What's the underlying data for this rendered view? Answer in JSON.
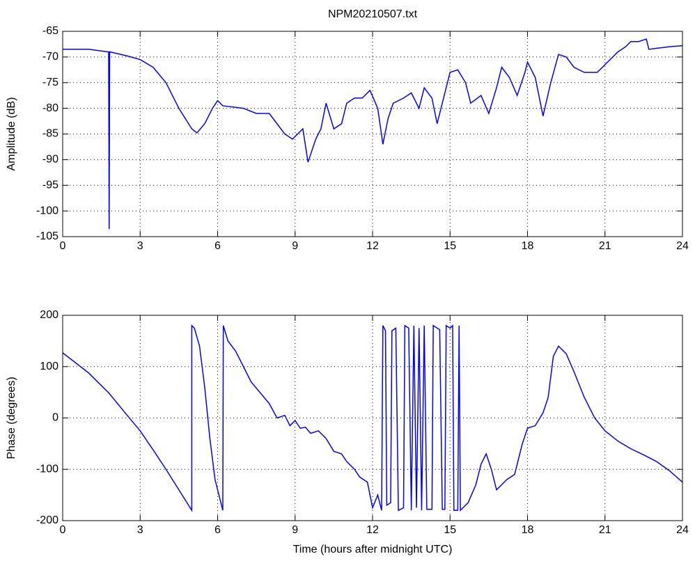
{
  "chart_data": [
    {
      "type": "line",
      "title": "NPM20210507.txt",
      "ylabel": "Amplitude (dB)",
      "xlim": [
        0,
        24
      ],
      "xticks": [
        0,
        3,
        6,
        9,
        12,
        15,
        18,
        21,
        24
      ],
      "ylim": [
        -105,
        -65
      ],
      "yticks": [
        -105,
        -100,
        -95,
        -90,
        -85,
        -80,
        -75,
        -70,
        -65
      ],
      "grid": true,
      "series": [
        {
          "color": "#0000ff",
          "x": [
            0,
            1,
            1.75,
            1.78,
            1.8,
            1.82,
            2.5,
            3,
            3.5,
            4,
            4.5,
            5,
            5.2,
            5.5,
            5.8,
            6,
            6.2,
            7,
            7.5,
            8,
            8.3,
            8.6,
            8.9,
            9.1,
            9.3,
            9.5,
            9.8,
            10,
            10.2,
            10.5,
            10.8,
            11,
            11.3,
            11.6,
            11.9,
            12.2,
            12.4,
            12.6,
            12.8,
            13.2,
            13.5,
            13.8,
            14,
            14.3,
            14.5,
            14.8,
            15,
            15.3,
            15.6,
            15.8,
            16.2,
            16.5,
            16.8,
            17,
            17.3,
            17.6,
            17.9,
            18,
            18.3,
            18.6,
            18.9,
            19.2,
            19.5,
            19.8,
            20.2,
            20.7,
            21.1,
            21.5,
            21.8,
            22,
            22.3,
            22.6,
            22.7,
            23,
            23.5,
            24
          ],
          "values": [
            -68.5,
            -68.5,
            -69,
            -69,
            -103.5,
            -69,
            -69.8,
            -70.5,
            -72,
            -75,
            -80,
            -84,
            -84.8,
            -83,
            -80,
            -78.5,
            -79.5,
            -80,
            -81,
            -81,
            -83,
            -85,
            -86,
            -85,
            -84,
            -90.5,
            -86,
            -84,
            -79,
            -84,
            -83,
            -79,
            -78,
            -78,
            -76.5,
            -80,
            -87,
            -82,
            -79,
            -78,
            -77,
            -80,
            -76,
            -78,
            -83,
            -77,
            -73,
            -72.5,
            -75,
            -79,
            -77.5,
            -81,
            -76,
            -72,
            -74,
            -77.5,
            -73,
            -71,
            -74,
            -81.5,
            -75,
            -69.5,
            -70,
            -72,
            -73,
            -73,
            -71,
            -69,
            -68,
            -67,
            -67,
            -66.5,
            -68.5,
            -68.3,
            -68,
            -67.8
          ]
        }
      ]
    },
    {
      "type": "line",
      "ylabel": "Phase (degrees)",
      "xlabel": "Time (hours after midnight UTC)",
      "xlim": [
        0,
        24
      ],
      "xticks": [
        0,
        3,
        6,
        9,
        12,
        15,
        18,
        21,
        24
      ],
      "ylim": [
        -200,
        200
      ],
      "yticks": [
        -200,
        -100,
        0,
        100,
        200
      ],
      "grid": true,
      "series": [
        {
          "color": "#0000ff",
          "x": [
            0,
            1,
            1.8,
            2.5,
            3,
            3.5,
            4,
            4.5,
            5,
            5,
            5.1,
            5.3,
            5.5,
            5.7,
            5.9,
            6.2,
            6.22,
            6.4,
            6.7,
            7,
            7.3,
            7.6,
            8,
            8.3,
            8.6,
            8.8,
            9,
            9.2,
            9.4,
            9.6,
            9.9,
            10.2,
            10.5,
            10.8,
            11,
            11.3,
            11.5,
            11.8,
            12,
            12.2,
            12.35,
            12.4,
            12.5,
            12.55,
            12.7,
            12.75,
            12.9,
            13,
            13.2,
            13.25,
            13.4,
            13.5,
            13.6,
            13.7,
            13.8,
            13.9,
            14,
            14.1,
            14.3,
            14.35,
            14.6,
            14.7,
            14.8,
            14.85,
            15,
            15.1,
            15.15,
            15.3,
            15.35,
            15.4,
            15.7,
            16,
            16.2,
            16.4,
            16.6,
            16.8,
            17.2,
            17.5,
            17.8,
            18,
            18.3,
            18.6,
            18.8,
            19,
            19.2,
            19.5,
            19.8,
            20.2,
            20.6,
            21,
            21.5,
            22,
            22.5,
            23,
            23.5,
            24
          ],
          "values": [
            127,
            88,
            48,
            5,
            -25,
            -62,
            -100,
            -140,
            -180,
            180,
            175,
            140,
            60,
            -40,
            -120,
            -180,
            180,
            150,
            130,
            100,
            70,
            52,
            28,
            0,
            5,
            -15,
            -5,
            -20,
            -18,
            -30,
            -25,
            -40,
            -65,
            -70,
            -85,
            -100,
            -115,
            -125,
            -175,
            -150,
            -180,
            180,
            170,
            -170,
            -165,
            170,
            175,
            -180,
            -175,
            180,
            175,
            -180,
            180,
            -175,
            175,
            -180,
            180,
            -178,
            -178,
            180,
            172,
            -178,
            -178,
            180,
            175,
            180,
            -180,
            -180,
            180,
            -180,
            -165,
            -130,
            -90,
            -70,
            -100,
            -140,
            -120,
            -110,
            -50,
            -20,
            -15,
            10,
            40,
            120,
            140,
            125,
            90,
            40,
            0,
            -25,
            -45,
            -60,
            -72,
            -85,
            -103,
            -125
          ]
        }
      ]
    }
  ]
}
